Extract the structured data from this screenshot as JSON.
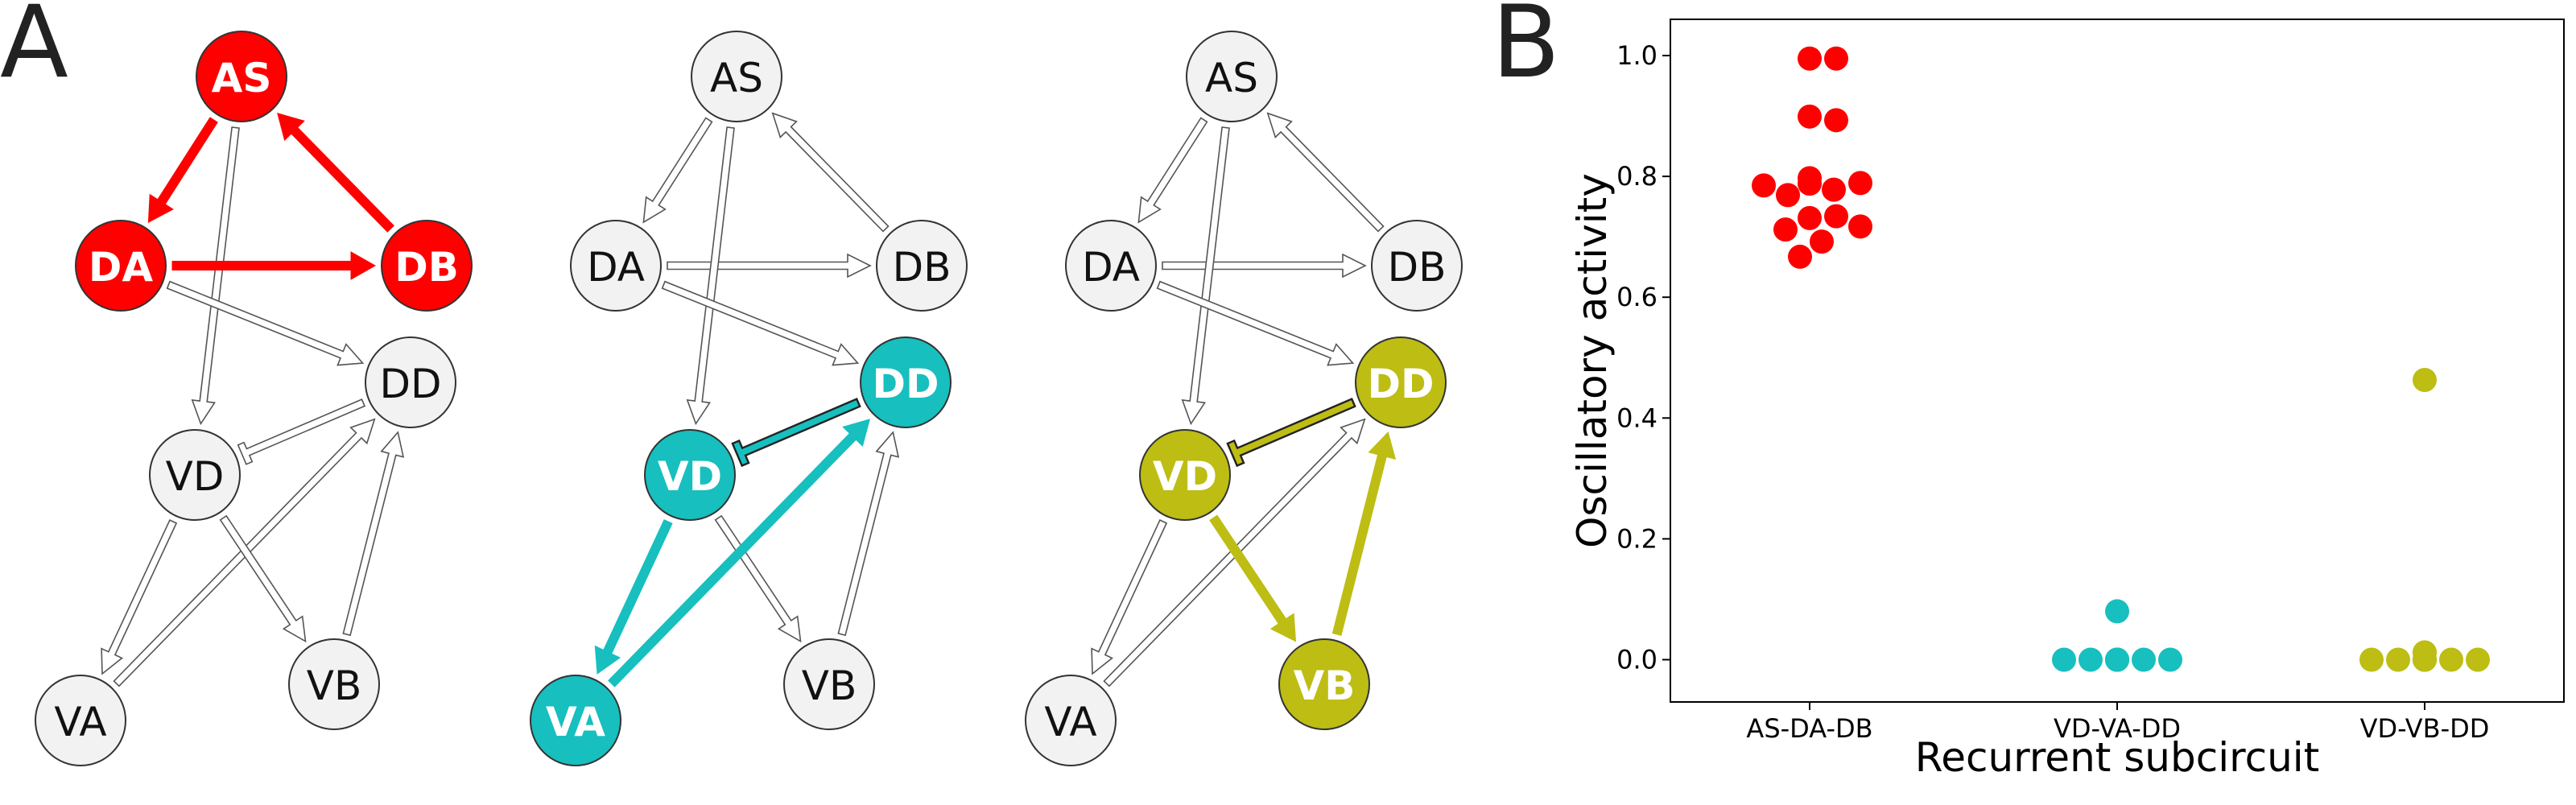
{
  "panels": {
    "a": {
      "letter": "A"
    },
    "b": {
      "letter": "B"
    }
  },
  "colors": {
    "as_da_db": "#ff0000",
    "vd_va_dd": "#17bfbf",
    "vd_vb_dd": "#bdbd14",
    "inactive_node": "#f2f2f2",
    "node_outline": "#333333"
  },
  "circuits": [
    {
      "nodes": [
        {
          "id": "AS",
          "label": "AS",
          "active": true
        },
        {
          "id": "DA",
          "label": "DA",
          "active": true
        },
        {
          "id": "DB",
          "label": "DB",
          "active": true
        },
        {
          "id": "DD",
          "label": "DD",
          "active": false
        },
        {
          "id": "VD",
          "label": "VD",
          "active": false
        },
        {
          "id": "VA",
          "label": "VA",
          "active": false
        },
        {
          "id": "VB",
          "label": "VB",
          "active": false
        }
      ],
      "edges": [
        {
          "from": "AS",
          "to": "DA",
          "kind": "excitatory",
          "active": true
        },
        {
          "from": "DB",
          "to": "AS",
          "kind": "excitatory",
          "active": true
        },
        {
          "from": "DA",
          "to": "DB",
          "kind": "excitatory",
          "active": true
        },
        {
          "from": "AS",
          "to": "VD",
          "kind": "excitatory",
          "active": false
        },
        {
          "from": "DA",
          "to": "DD",
          "kind": "excitatory",
          "active": false
        },
        {
          "from": "DD",
          "to": "VD",
          "kind": "inhibitory",
          "active": false
        },
        {
          "from": "VD",
          "to": "VA",
          "kind": "excitatory",
          "active": false
        },
        {
          "from": "VA",
          "to": "DD",
          "kind": "excitatory",
          "active": false
        },
        {
          "from": "VD",
          "to": "VB",
          "kind": "excitatory",
          "active": false
        },
        {
          "from": "VB",
          "to": "DD",
          "kind": "excitatory",
          "active": false
        }
      ]
    },
    {
      "nodes": [
        {
          "id": "AS",
          "label": "AS",
          "active": false
        },
        {
          "id": "DA",
          "label": "DA",
          "active": false
        },
        {
          "id": "DB",
          "label": "DB",
          "active": false
        },
        {
          "id": "DD",
          "label": "DD",
          "active": true
        },
        {
          "id": "VD",
          "label": "VD",
          "active": true
        },
        {
          "id": "VA",
          "label": "VA",
          "active": true
        },
        {
          "id": "VB",
          "label": "VB",
          "active": false
        }
      ],
      "edges": [
        {
          "from": "AS",
          "to": "DA",
          "kind": "excitatory",
          "active": false
        },
        {
          "from": "DB",
          "to": "AS",
          "kind": "excitatory",
          "active": false
        },
        {
          "from": "DA",
          "to": "DB",
          "kind": "excitatory",
          "active": false
        },
        {
          "from": "AS",
          "to": "VD",
          "kind": "excitatory",
          "active": false
        },
        {
          "from": "DA",
          "to": "DD",
          "kind": "excitatory",
          "active": false
        },
        {
          "from": "DD",
          "to": "VD",
          "kind": "inhibitory",
          "active": true
        },
        {
          "from": "VD",
          "to": "VA",
          "kind": "excitatory",
          "active": true
        },
        {
          "from": "VA",
          "to": "DD",
          "kind": "excitatory",
          "active": true
        },
        {
          "from": "VD",
          "to": "VB",
          "kind": "excitatory",
          "active": false
        },
        {
          "from": "VB",
          "to": "DD",
          "kind": "excitatory",
          "active": false
        }
      ]
    },
    {
      "nodes": [
        {
          "id": "AS",
          "label": "AS",
          "active": false
        },
        {
          "id": "DA",
          "label": "DA",
          "active": false
        },
        {
          "id": "DB",
          "label": "DB",
          "active": false
        },
        {
          "id": "DD",
          "label": "DD",
          "active": true
        },
        {
          "id": "VD",
          "label": "VD",
          "active": true
        },
        {
          "id": "VA",
          "label": "VA",
          "active": false
        },
        {
          "id": "VB",
          "label": "VB",
          "active": true
        }
      ],
      "edges": [
        {
          "from": "AS",
          "to": "DA",
          "kind": "excitatory",
          "active": false
        },
        {
          "from": "DB",
          "to": "AS",
          "kind": "excitatory",
          "active": false
        },
        {
          "from": "DA",
          "to": "DB",
          "kind": "excitatory",
          "active": false
        },
        {
          "from": "AS",
          "to": "VD",
          "kind": "excitatory",
          "active": false
        },
        {
          "from": "DA",
          "to": "DD",
          "kind": "excitatory",
          "active": false
        },
        {
          "from": "DD",
          "to": "VD",
          "kind": "inhibitory",
          "active": true
        },
        {
          "from": "VD",
          "to": "VA",
          "kind": "excitatory",
          "active": false
        },
        {
          "from": "VA",
          "to": "DD",
          "kind": "excitatory",
          "active": false
        },
        {
          "from": "VD",
          "to": "VB",
          "kind": "excitatory",
          "active": true
        },
        {
          "from": "VB",
          "to": "DD",
          "kind": "excitatory",
          "active": true
        }
      ]
    }
  ],
  "chart_data": {
    "type": "scatter",
    "title": "",
    "xlabel": "Recurrent subcircuit",
    "ylabel": "Oscillatory activity",
    "categories": [
      "AS-DA-DB",
      "VD-VA-DD",
      "VD-VB-DD"
    ],
    "ylim": [
      -0.07,
      1.06
    ],
    "yticks": [
      "0.0",
      "0.2",
      "0.4",
      "0.6",
      "0.8",
      "1.0"
    ],
    "grid": false,
    "series": [
      {
        "category": "AS-DA-DB",
        "color": "#ff0000",
        "values": [
          0.995,
          0.995,
          0.899,
          0.893,
          0.797,
          0.778,
          0.769,
          0.785,
          0.789,
          0.788,
          0.731,
          0.734,
          0.712,
          0.717,
          0.692,
          0.667
        ]
      },
      {
        "category": "VD-VA-DD",
        "color": "#17bfbf",
        "values": [
          0.0,
          0.0,
          0.0,
          0.0,
          0.0,
          0.0,
          0.0,
          0.0,
          0.0,
          0.0,
          0.08
        ]
      },
      {
        "category": "VD-VB-DD",
        "color": "#bdbd14",
        "values": [
          0.012,
          0.0,
          0.0,
          0.0,
          0.0,
          0.0,
          0.0,
          0.0,
          0.0,
          0.012,
          0.0,
          0.463
        ]
      }
    ]
  }
}
